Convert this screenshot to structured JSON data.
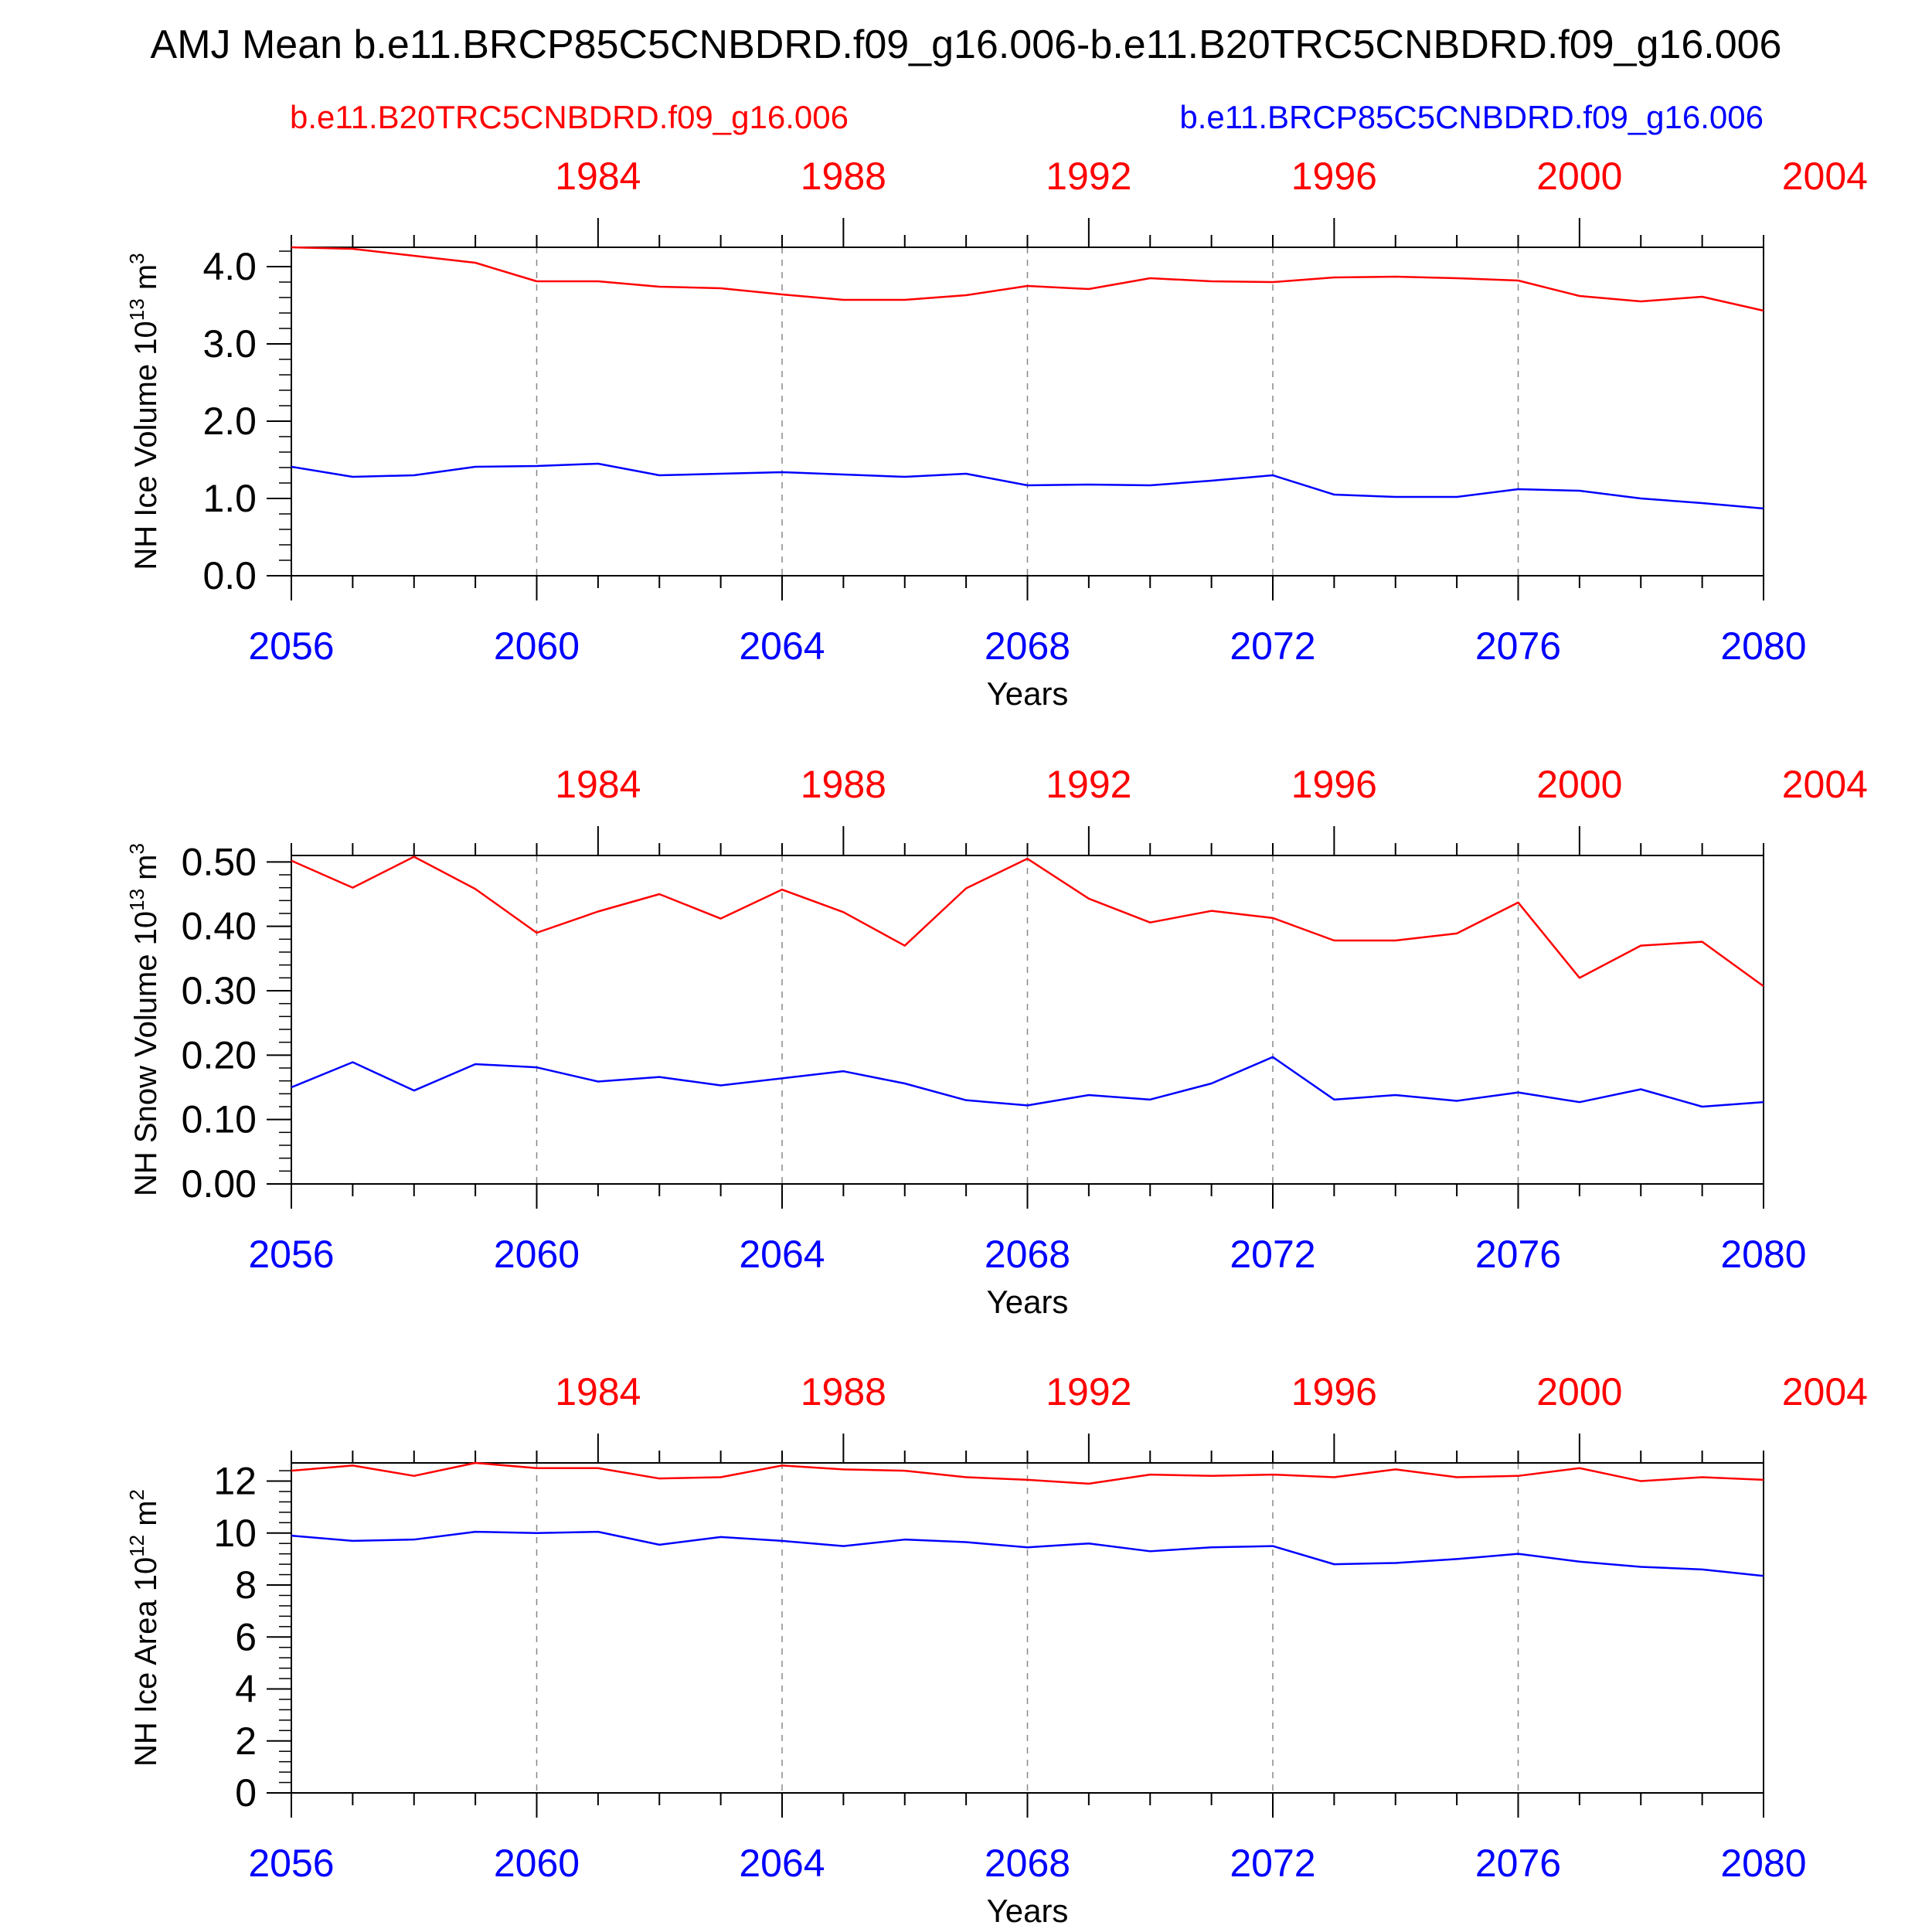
{
  "title": "AMJ Mean b.e11.BRCP85C5CNBDRD.f09_g16.006-b.e11.B20TRC5CNBDRD.f09_g16.006",
  "legend": {
    "red_label": "b.e11.B20TRC5CNBDRD.f09_g16.006",
    "blue_label": "b.e11.BRCP85C5CNBDRD.f09_g16.006"
  },
  "colors": {
    "red": "#ff0000",
    "blue": "#0000ff",
    "axis": "#000000",
    "grid": "#888888"
  },
  "chart_data": [
    {
      "type": "line",
      "ylabel": "NH Ice Volume 10",
      "ylabel_exp": "13",
      "ylabel_unit": " m",
      "ylabel_unit_exp": "3",
      "xlabel": "Years",
      "xlim": [
        2056,
        2080
      ],
      "ylim": [
        0,
        4.25
      ],
      "yticks": [
        0,
        1,
        2,
        3,
        4
      ],
      "ytick_labels": [
        "0.0",
        "1.0",
        "2.0",
        "3.0",
        "4.0"
      ],
      "ytick_minor_step": 0.2,
      "bottom_ticks": [
        2056,
        2060,
        2064,
        2068,
        2072,
        2076,
        2080
      ],
      "top_ticks": [
        1984,
        1988,
        1992,
        1996,
        2000,
        2004
      ],
      "top_axis_offset": 77,
      "grid_x": [
        2060,
        2064,
        2068,
        2072,
        2076
      ],
      "x": [
        2056,
        2057,
        2058,
        2059,
        2060,
        2061,
        2062,
        2063,
        2064,
        2065,
        2066,
        2067,
        2068,
        2069,
        2070,
        2071,
        2072,
        2073,
        2074,
        2075,
        2076,
        2077,
        2078,
        2079,
        2080
      ],
      "series": [
        {
          "name": "b.e11.B20TRC5CNBDRD.f09_g16.006",
          "color": "#ff0000",
          "values": [
            4.25,
            4.23,
            4.14,
            4.05,
            3.81,
            3.81,
            3.74,
            3.72,
            3.64,
            3.57,
            3.57,
            3.63,
            3.75,
            3.71,
            3.85,
            3.81,
            3.8,
            3.86,
            3.87,
            3.85,
            3.82,
            3.62,
            3.55,
            3.61,
            3.43
          ]
        },
        {
          "name": "b.e11.BRCP85C5CNBDRD.f09_g16.006",
          "color": "#0000ff",
          "values": [
            1.41,
            1.28,
            1.3,
            1.41,
            1.42,
            1.45,
            1.3,
            1.32,
            1.34,
            1.31,
            1.28,
            1.32,
            1.17,
            1.18,
            1.17,
            1.23,
            1.3,
            1.05,
            1.02,
            1.02,
            1.12,
            1.1,
            1.0,
            0.94,
            0.87
          ]
        }
      ]
    },
    {
      "type": "line",
      "ylabel": "NH Snow Volume 10",
      "ylabel_exp": "13",
      "ylabel_unit": " m",
      "ylabel_unit_exp": "3",
      "xlabel": "Years",
      "xlim": [
        2056,
        2080
      ],
      "ylim": [
        0,
        0.51
      ],
      "yticks": [
        0,
        0.1,
        0.2,
        0.3,
        0.4,
        0.5
      ],
      "ytick_labels": [
        "0.00",
        "0.10",
        "0.20",
        "0.30",
        "0.40",
        "0.50"
      ],
      "ytick_minor_step": 0.02,
      "bottom_ticks": [
        2056,
        2060,
        2064,
        2068,
        2072,
        2076,
        2080
      ],
      "top_ticks": [
        1984,
        1988,
        1992,
        1996,
        2000,
        2004
      ],
      "top_axis_offset": 77,
      "grid_x": [
        2060,
        2064,
        2068,
        2072,
        2076
      ],
      "x": [
        2056,
        2057,
        2058,
        2059,
        2060,
        2061,
        2062,
        2063,
        2064,
        2065,
        2066,
        2067,
        2068,
        2069,
        2070,
        2071,
        2072,
        2073,
        2074,
        2075,
        2076,
        2077,
        2078,
        2079,
        2080
      ],
      "series": [
        {
          "name": "b.e11.B20TRC5CNBDRD.f09_g16.006",
          "color": "#ff0000",
          "values": [
            0.502,
            0.46,
            0.508,
            0.458,
            0.39,
            0.423,
            0.45,
            0.412,
            0.457,
            0.422,
            0.37,
            0.459,
            0.505,
            0.443,
            0.406,
            0.424,
            0.413,
            0.378,
            0.378,
            0.389,
            0.437,
            0.32,
            0.37,
            0.376,
            0.307
          ]
        },
        {
          "name": "b.e11.BRCP85C5CNBDRD.f09_g16.006",
          "color": "#0000ff",
          "values": [
            0.15,
            0.189,
            0.145,
            0.186,
            0.181,
            0.159,
            0.166,
            0.153,
            0.164,
            0.175,
            0.156,
            0.13,
            0.122,
            0.138,
            0.131,
            0.156,
            0.197,
            0.131,
            0.138,
            0.129,
            0.142,
            0.127,
            0.147,
            0.12,
            0.127
          ]
        }
      ]
    },
    {
      "type": "line",
      "ylabel": "NH Ice Area 10",
      "ylabel_exp": "12",
      "ylabel_unit": " m",
      "ylabel_unit_exp": "2",
      "xlabel": "Years",
      "xlim": [
        2056,
        2080
      ],
      "ylim": [
        0,
        12.7
      ],
      "yticks": [
        0,
        2,
        4,
        6,
        8,
        10,
        12
      ],
      "ytick_labels": [
        "0",
        "2",
        "4",
        "6",
        "8",
        "10",
        "12"
      ],
      "ytick_minor_step": 0.4,
      "bottom_ticks": [
        2056,
        2060,
        2064,
        2068,
        2072,
        2076,
        2080
      ],
      "top_ticks": [
        1984,
        1988,
        1992,
        1996,
        2000,
        2004
      ],
      "top_axis_offset": 77,
      "grid_x": [
        2060,
        2064,
        2068,
        2072,
        2076
      ],
      "x": [
        2056,
        2057,
        2058,
        2059,
        2060,
        2061,
        2062,
        2063,
        2064,
        2065,
        2066,
        2067,
        2068,
        2069,
        2070,
        2071,
        2072,
        2073,
        2074,
        2075,
        2076,
        2077,
        2078,
        2079,
        2080
      ],
      "series": [
        {
          "name": "b.e11.B20TRC5CNBDRD.f09_g16.006",
          "color": "#ff0000",
          "values": [
            12.4,
            12.6,
            12.2,
            12.7,
            12.5,
            12.5,
            12.1,
            12.15,
            12.6,
            12.45,
            12.4,
            12.15,
            12.05,
            11.9,
            12.25,
            12.2,
            12.25,
            12.15,
            12.45,
            12.15,
            12.2,
            12.5,
            12.0,
            12.15,
            12.05
          ]
        },
        {
          "name": "b.e11.BRCP85C5CNBDRD.f09_g16.006",
          "color": "#0000ff",
          "values": [
            9.9,
            9.7,
            9.75,
            10.05,
            10.0,
            10.05,
            9.55,
            9.85,
            9.7,
            9.5,
            9.75,
            9.65,
            9.45,
            9.6,
            9.3,
            9.45,
            9.5,
            8.8,
            8.85,
            9.0,
            9.2,
            8.9,
            8.7,
            8.6,
            8.35
          ]
        }
      ]
    }
  ]
}
